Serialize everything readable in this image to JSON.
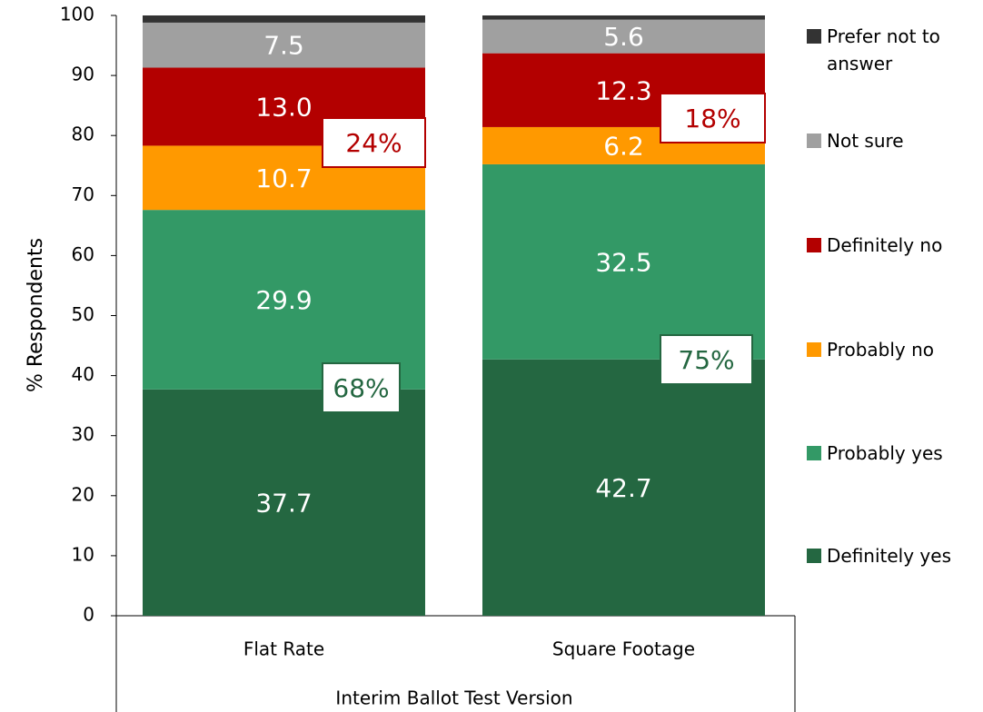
{
  "chart_data": {
    "type": "stacked_bar",
    "x_label": "Interim Ballot Test Version",
    "y_label": "% Respondents",
    "categories": [
      "Flat Rate",
      "Square Footage"
    ],
    "ylim": [
      0,
      100
    ],
    "yticks": [
      0,
      10,
      20,
      30,
      40,
      50,
      60,
      70,
      80,
      90,
      100
    ],
    "series": [
      {
        "name": "Definitely yes",
        "color": "#246741",
        "values": [
          37.7,
          42.7
        ],
        "value_labels": [
          "37.7",
          "42.7"
        ]
      },
      {
        "name": "Probably yes",
        "color": "#339966",
        "values": [
          29.9,
          32.5
        ],
        "value_labels": [
          "29.9",
          "32.5"
        ]
      },
      {
        "name": "Probably no",
        "color": "#ff9900",
        "values": [
          10.7,
          6.2
        ],
        "value_labels": [
          "10.7",
          "6.2"
        ]
      },
      {
        "name": "Definitely no",
        "color": "#b30000",
        "values": [
          13.0,
          12.3
        ],
        "value_labels": [
          "13.0",
          "12.3"
        ]
      },
      {
        "name": "Not sure",
        "color": "#a0a0a0",
        "values": [
          7.5,
          5.6
        ],
        "value_labels": [
          "7.5",
          "5.6"
        ]
      },
      {
        "name": "Prefer not to answer",
        "color": "#333333",
        "values": [
          1.2,
          0.7
        ]
      }
    ],
    "annotations": [
      "24%",
      "68%",
      "18%",
      "75%"
    ]
  }
}
